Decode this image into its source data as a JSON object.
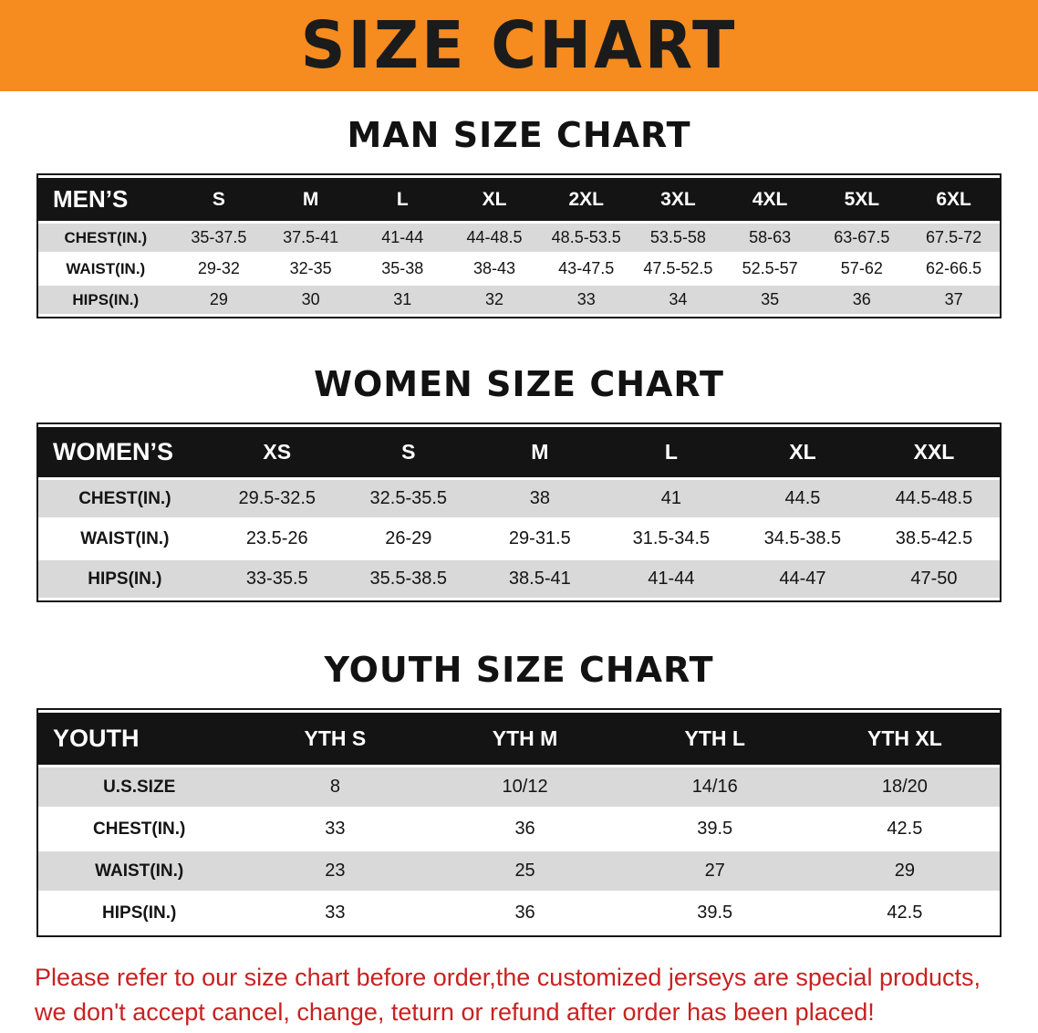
{
  "banner": {
    "title": "SIZE CHART"
  },
  "sections": {
    "men": {
      "heading": "MAN SIZE CHART"
    },
    "women": {
      "heading": "WOMEN SIZE CHART"
    },
    "youth": {
      "heading": "YOUTH SIZE CHART"
    }
  },
  "tables": {
    "men": {
      "header": [
        "MEN’S",
        "S",
        "M",
        "L",
        "XL",
        "2XL",
        "3XL",
        "4XL",
        "5XL",
        "6XL"
      ],
      "rows": [
        [
          "CHEST(IN.)",
          "35-37.5",
          "37.5-41",
          "41-44",
          "44-48.5",
          "48.5-53.5",
          "53.5-58",
          "58-63",
          "63-67.5",
          "67.5-72"
        ],
        [
          "WAIST(IN.)",
          "29-32",
          "32-35",
          "35-38",
          "38-43",
          "43-47.5",
          "47.5-52.5",
          "52.5-57",
          "57-62",
          "62-66.5"
        ],
        [
          "HIPS(IN.)",
          "29",
          "30",
          "31",
          "32",
          "33",
          "34",
          "35",
          "36",
          "37"
        ]
      ]
    },
    "women": {
      "header": [
        "WOMEN’S",
        "XS",
        "S",
        "M",
        "L",
        "XL",
        "XXL"
      ],
      "rows": [
        [
          "CHEST(IN.)",
          "29.5-32.5",
          "32.5-35.5",
          "38",
          "41",
          "44.5",
          "44.5-48.5"
        ],
        [
          "WAIST(IN.)",
          "23.5-26",
          "26-29",
          "29-31.5",
          "31.5-34.5",
          "34.5-38.5",
          "38.5-42.5"
        ],
        [
          "HIPS(IN.)",
          "33-35.5",
          "35.5-38.5",
          "38.5-41",
          "41-44",
          "44-47",
          "47-50"
        ]
      ]
    },
    "youth": {
      "header": [
        "YOUTH",
        "YTH S",
        "YTH M",
        "YTH L",
        "YTH XL"
      ],
      "rows": [
        [
          "U.S.SIZE",
          "8",
          "10/12",
          "14/16",
          "18/20"
        ],
        [
          "CHEST(IN.)",
          "33",
          "36",
          "39.5",
          "42.5"
        ],
        [
          "WAIST(IN.)",
          "23",
          "25",
          "27",
          "29"
        ],
        [
          "HIPS(IN.)",
          "33",
          "36",
          "39.5",
          "42.5"
        ]
      ]
    }
  },
  "footer": {
    "line1": "Please refer to our size chart before order,the customized jerseys are special products,",
    "line2": "we don't accept cancel, change, teturn or refund after order has been placed!"
  },
  "colors": {
    "banner_orange": "#f68b1f",
    "header_black": "#141414",
    "row_shade": "#d9d9d9",
    "notice_red": "#c92121"
  }
}
